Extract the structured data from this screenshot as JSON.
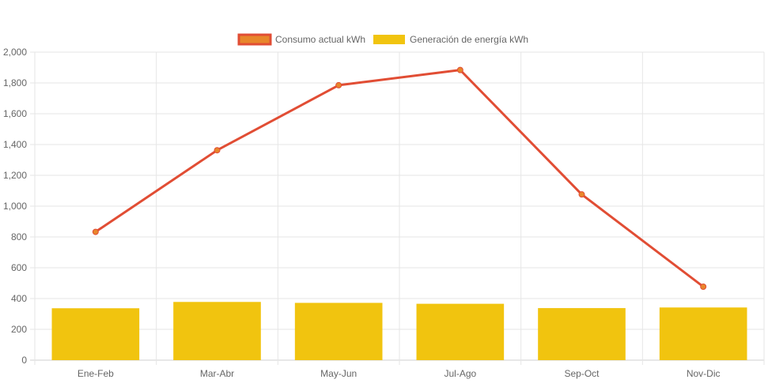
{
  "chart_data": {
    "type": "bar",
    "categories": [
      "Ene-Feb",
      "Mar-Abr",
      "May-Jun",
      "Jul-Ago",
      "Sep-Oct",
      "Nov-Dic"
    ],
    "series": [
      {
        "name": "Consumo actual kWh",
        "kind": "line",
        "color": "#e14d34",
        "point_fill": "#e8862b",
        "values": [
          833,
          1363,
          1785,
          1884,
          1076,
          477
        ]
      },
      {
        "name": "Generación de energía kWh",
        "kind": "bar",
        "color": "#f1c40f",
        "values": [
          337,
          378,
          372,
          366,
          338,
          342
        ]
      }
    ],
    "yticks": [
      "0",
      "200",
      "400",
      "600",
      "800",
      "1,000",
      "1,200",
      "1,400",
      "1,600",
      "1,800",
      "2,000"
    ],
    "ylim": [
      0,
      2000
    ],
    "grid": true,
    "legend_position": "top-center"
  }
}
